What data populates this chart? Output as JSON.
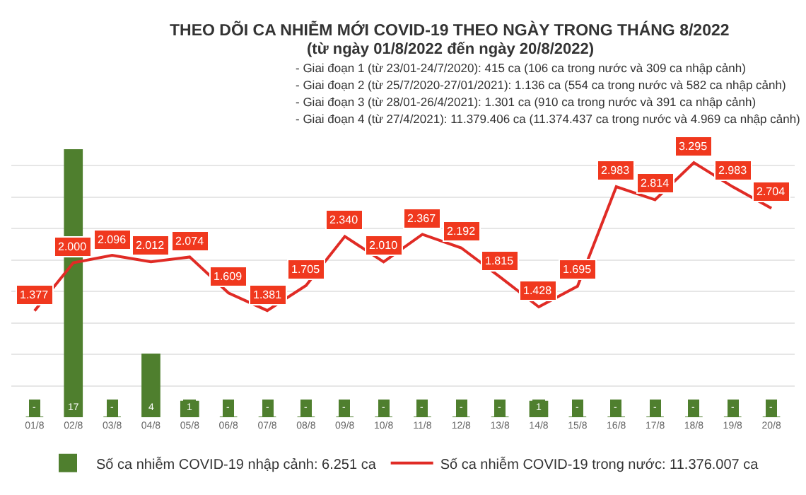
{
  "chart_data": {
    "type": "bar",
    "title": "THEO DÕI CA NHIỄM MỚI COVID-19 THEO NGÀY TRONG THÁNG 8/2022",
    "subtitle": "(từ ngày 01/8/2022 đến ngày 20/8/2022)",
    "annotations": [
      "- Giai đoạn 1 (từ 23/01-24/7/2020): 415 ca (106 ca trong nước và 309 ca nhập cảnh)",
      "- Giai đoạn 2 (từ 25/7/2020-27/01/2021): 1.136 ca (554 ca trong nước và 582 ca nhập cảnh)",
      "- Giai đoạn 3 (từ 28/01-26/4/2021): 1.301 ca (910 ca trong nước và 391 ca nhập cảnh)",
      "- Giai đoạn 4 (từ 27/4/2021): 11.379.406 ca (11.374.437 ca trong nước và 4.969 ca nhập cảnh)"
    ],
    "categories": [
      "01/8",
      "02/8",
      "03/8",
      "04/8",
      "05/8",
      "06/8",
      "07/8",
      "08/8",
      "09/8",
      "10/8",
      "11/8",
      "12/8",
      "13/8",
      "14/8",
      "15/8",
      "16/8",
      "17/8",
      "18/8",
      "19/8",
      "20/8"
    ],
    "series": [
      {
        "name": "Số ca nhiễm COVID-19 nhập cảnh: 6.251 ca",
        "color": "#4f7f2e",
        "values": [
          0,
          17,
          0,
          4,
          1,
          0,
          0,
          0,
          0,
          0,
          0,
          0,
          0,
          1,
          0,
          0,
          0,
          0,
          0,
          0
        ],
        "value_labels": [
          "-",
          "17",
          "-",
          "4",
          "1",
          "-",
          "-",
          "-",
          "-",
          "-",
          "-",
          "-",
          "-",
          "1",
          "-",
          "-",
          "-",
          "-",
          "-",
          "-"
        ]
      },
      {
        "name": "Số ca nhiễm COVID-19 trong nước: 11.376.007 ca",
        "type": "line",
        "axis": "y2",
        "color": "#e02b25",
        "values": [
          1377,
          2000,
          2096,
          2012,
          2074,
          1609,
          1381,
          1705,
          2340,
          2010,
          2367,
          2192,
          1815,
          1428,
          1695,
          2983,
          2814,
          3295,
          2983,
          2704
        ],
        "value_labels": [
          "1.377",
          "2.000",
          "2.096",
          "2.012",
          "2.074",
          "1.609",
          "1.381",
          "1.705",
          "2.340",
          "2.010",
          "2.367",
          "2.192",
          "1.815",
          "1.428",
          "1.695",
          "2.983",
          "2.814",
          "3.295",
          "2.983",
          "2.704"
        ]
      }
    ],
    "grid": "y",
    "tick_labels": "x",
    "legend": "bottom",
    "marker": "none",
    "line_style": "solid"
  }
}
